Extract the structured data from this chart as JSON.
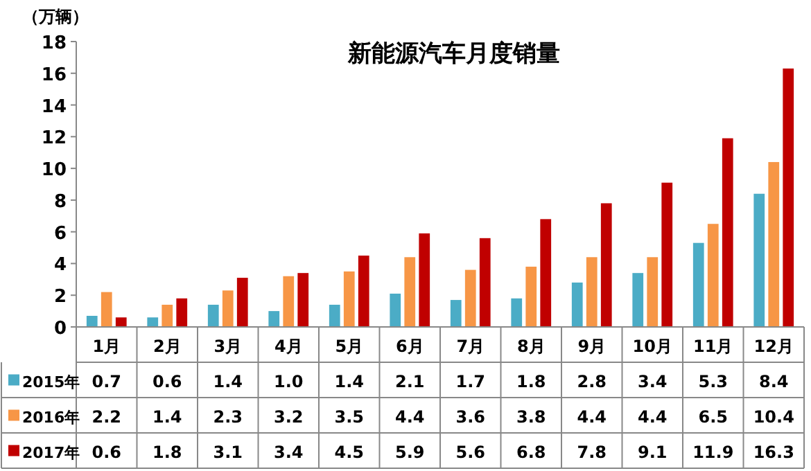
{
  "chart_data": {
    "type": "bar",
    "title": "新能源汽车月度销量",
    "ylabel": "（万辆）",
    "categories": [
      "1月",
      "2月",
      "3月",
      "4月",
      "5月",
      "6月",
      "7月",
      "8月",
      "9月",
      "10月",
      "11月",
      "12月"
    ],
    "series": [
      {
        "name": "2015年",
        "color": "#4bacc6",
        "values": [
          0.7,
          0.6,
          1.4,
          1.0,
          1.4,
          2.1,
          1.7,
          1.8,
          2.8,
          3.4,
          5.3,
          8.4
        ],
        "value_labels": [
          "0.7",
          "0.6",
          "1.4",
          "1.0",
          "1.4",
          "2.1",
          "1.7",
          "1.8",
          "2.8",
          "3.4",
          "5.3",
          "8.4"
        ]
      },
      {
        "name": "2016年",
        "color": "#f79646",
        "values": [
          2.2,
          1.4,
          2.3,
          3.2,
          3.5,
          4.4,
          3.6,
          3.8,
          4.4,
          4.4,
          6.5,
          10.4
        ],
        "value_labels": [
          "2.2",
          "1.4",
          "2.3",
          "3.2",
          "3.5",
          "4.4",
          "3.6",
          "3.8",
          "4.4",
          "4.4",
          "6.5",
          "10.4"
        ]
      },
      {
        "name": "2017年",
        "color": "#c00000",
        "values": [
          0.6,
          1.8,
          3.1,
          3.4,
          4.5,
          5.9,
          5.6,
          6.8,
          7.8,
          9.1,
          11.9,
          16.3
        ],
        "value_labels": [
          "0.6",
          "1.8",
          "3.1",
          "3.4",
          "4.5",
          "5.9",
          "5.6",
          "6.8",
          "7.8",
          "9.1",
          "11.9",
          "16.3"
        ]
      }
    ],
    "ylim": [
      0,
      18
    ],
    "yticks": [
      0,
      2,
      4,
      6,
      8,
      10,
      12,
      14,
      16,
      18
    ],
    "legend": "bottom"
  }
}
